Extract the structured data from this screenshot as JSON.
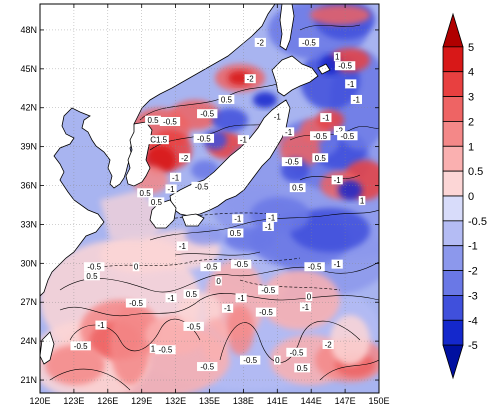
{
  "map": {
    "lon_ticks": [
      "120E",
      "123E",
      "126E",
      "129E",
      "132E",
      "135E",
      "138E",
      "141E",
      "144E",
      "147E",
      "150E"
    ],
    "lat_ticks": [
      "21N",
      "24N",
      "27N",
      "30N",
      "33N",
      "36N",
      "39N",
      "42N",
      "45N",
      "48N"
    ],
    "lon_range": [
      120,
      150
    ],
    "lat_range": [
      20,
      50
    ],
    "contour_labels": [
      {
        "text": "-2",
        "lon": 139.5,
        "lat": 47.0
      },
      {
        "text": "-0.5",
        "lon": 143.8,
        "lat": 47.0
      },
      {
        "text": "1",
        "lon": 146.3,
        "lat": 45.9
      },
      {
        "text": "-0.5",
        "lon": 147.0,
        "lat": 45.2
      },
      {
        "text": "-2",
        "lon": 138.6,
        "lat": 44.2
      },
      {
        "text": "-1",
        "lon": 147.5,
        "lat": 43.8
      },
      {
        "text": "0.5",
        "lon": 136.5,
        "lat": 42.6
      },
      {
        "text": "-1",
        "lon": 148.0,
        "lat": 42.6
      },
      {
        "text": "-0.5",
        "lon": 134.8,
        "lat": 41.5
      },
      {
        "text": "0.5",
        "lon": 130.0,
        "lat": 41.0
      },
      {
        "text": "-0.5",
        "lon": 131.5,
        "lat": 40.9
      },
      {
        "text": "-1",
        "lon": 141.0,
        "lat": 41.3
      },
      {
        "text": "-1",
        "lon": 145.3,
        "lat": 41.2
      },
      {
        "text": "-2",
        "lon": 146.5,
        "lat": 40.2
      },
      {
        "text": "-1",
        "lon": 142.0,
        "lat": 40.1
      },
      {
        "text": "-0.5",
        "lon": 144.8,
        "lat": 39.8
      },
      {
        "text": "-0.5",
        "lon": 147.2,
        "lat": 39.8
      },
      {
        "text": "C1.5",
        "lon": 130.5,
        "lat": 39.5
      },
      {
        "text": "-0.5",
        "lon": 134.5,
        "lat": 39.6
      },
      {
        "text": "-1",
        "lon": 138.0,
        "lat": 39.5
      },
      {
        "text": "-2",
        "lon": 132.8,
        "lat": 38.1
      },
      {
        "text": "0.5",
        "lon": 144.8,
        "lat": 38.1
      },
      {
        "text": "-0.5",
        "lon": 142.3,
        "lat": 37.8
      },
      {
        "text": "-1",
        "lon": 132.0,
        "lat": 36.6
      },
      {
        "text": "-1",
        "lon": 146.3,
        "lat": 36.4
      },
      {
        "text": "0.5",
        "lon": 142.8,
        "lat": 35.8
      },
      {
        "text": "0.5",
        "lon": 129.3,
        "lat": 35.4
      },
      {
        "text": "-1",
        "lon": 131.6,
        "lat": 35.7
      },
      {
        "text": "-0.5",
        "lon": 134.3,
        "lat": 35.9
      },
      {
        "text": "0.5",
        "lon": 130.3,
        "lat": 34.7
      },
      {
        "text": "1",
        "lon": 148.5,
        "lat": 34.8
      },
      {
        "text": "-1",
        "lon": 137.5,
        "lat": 33.4
      },
      {
        "text": "-1",
        "lon": 140.5,
        "lat": 33.5
      },
      {
        "text": "-1",
        "lon": 140.2,
        "lat": 32.8
      },
      {
        "text": "0.5",
        "lon": 137.3,
        "lat": 32.3
      },
      {
        "text": "-1",
        "lon": 132.6,
        "lat": 31.3
      },
      {
        "text": "-0.5",
        "lon": 137.8,
        "lat": 29.9
      },
      {
        "text": "-1",
        "lon": 146.3,
        "lat": 29.9
      },
      {
        "text": "-0.5",
        "lon": 124.8,
        "lat": 29.7
      },
      {
        "text": "-0.5",
        "lon": 135.1,
        "lat": 29.7
      },
      {
        "text": "0",
        "lon": 128.5,
        "lat": 29.7
      },
      {
        "text": "-0.5",
        "lon": 144.3,
        "lat": 29.7
      },
      {
        "text": "0.5",
        "lon": 124.6,
        "lat": 29.0
      },
      {
        "text": "0",
        "lon": 135.8,
        "lat": 28.6
      },
      {
        "text": "-0.5",
        "lon": 140.2,
        "lat": 27.9
      },
      {
        "text": "-1",
        "lon": 131.6,
        "lat": 27.3
      },
      {
        "text": "0.5",
        "lon": 133.4,
        "lat": 27.6
      },
      {
        "text": "-1",
        "lon": 137.8,
        "lat": 27.3
      },
      {
        "text": "0",
        "lon": 143.8,
        "lat": 27.4
      },
      {
        "text": "-0.5",
        "lon": 128.5,
        "lat": 26.9
      },
      {
        "text": "-1",
        "lon": 143.5,
        "lat": 26.6
      },
      {
        "text": "-1",
        "lon": 136.6,
        "lat": 26.5
      },
      {
        "text": "-0.5",
        "lon": 140.0,
        "lat": 26.2
      },
      {
        "text": "-1",
        "lon": 125.4,
        "lat": 25.2
      },
      {
        "text": "-0.5",
        "lon": 133.6,
        "lat": 25.1
      },
      {
        "text": "-2",
        "lon": 145.5,
        "lat": 23.7
      },
      {
        "text": "-0.5",
        "lon": 123.6,
        "lat": 23.6
      },
      {
        "text": "1",
        "lon": 130.0,
        "lat": 23.4
      },
      {
        "text": "-0.5",
        "lon": 131.1,
        "lat": 23.3
      },
      {
        "text": "-0.5",
        "lon": 142.7,
        "lat": 23.1
      },
      {
        "text": "-0.5",
        "lon": 138.6,
        "lat": 22.5
      },
      {
        "text": "0",
        "lon": 141.0,
        "lat": 22.5
      },
      {
        "text": "0.5",
        "lon": 143.2,
        "lat": 21.9
      },
      {
        "text": "-0.5",
        "lon": 134.8,
        "lat": 22.0
      }
    ]
  },
  "colorbar": {
    "levels": [
      "5",
      "4",
      "3",
      "2",
      "1",
      "0.5",
      "0",
      "-0.5",
      "-1",
      "-2",
      "-3",
      "-4",
      "-5"
    ],
    "colors": [
      "#b00000",
      "#d81818",
      "#e84040",
      "#ee6464",
      "#f48888",
      "#fab0b0",
      "#fcd6d6",
      "#d8dcfa",
      "#b4bcf4",
      "#8c98ec",
      "#6a78e6",
      "#4050dc",
      "#1428cc",
      "#0010a0"
    ]
  },
  "colors": {
    "land": "#ffffff",
    "ocean_base": "#a8b4f0",
    "coast": "#000000"
  }
}
